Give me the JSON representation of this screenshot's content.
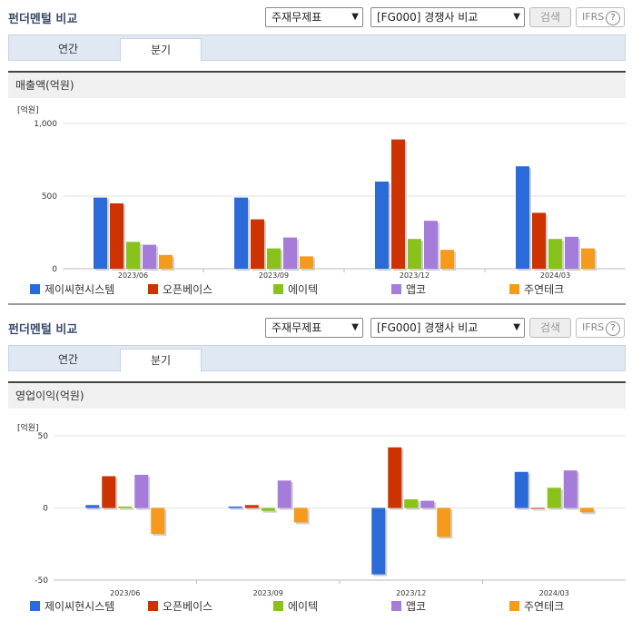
{
  "colors": [
    "#2a6ad9",
    "#cc3300",
    "#88c21b",
    "#a57cd9",
    "#f59a1c"
  ],
  "panels": [
    {
      "title": "펀더멘털 비교",
      "select1": "주재무제표",
      "select2": "[FG000] 경쟁사 비교",
      "search_label": "검색",
      "ifrs_label": "IFRS",
      "help_icon": "?",
      "tabs": [
        "연간",
        "분기"
      ],
      "active_tab": 1,
      "section_label": "매출액(억원)"
    },
    {
      "title": "펀더멘털 비교",
      "select1": "주재무제표",
      "select2": "[FG000] 경쟁사 비교",
      "search_label": "검색",
      "ifrs_label": "IFRS",
      "help_icon": "?",
      "tabs": [
        "연간",
        "분기"
      ],
      "active_tab": 1,
      "section_label": "영업이익(억원)"
    }
  ],
  "chart_data": [
    {
      "type": "bar",
      "unit_label": "[억원]",
      "categories": [
        "2023/06",
        "2023/09",
        "2023/12",
        "2024/03"
      ],
      "ylim": [
        0,
        1000
      ],
      "yticks": [
        0,
        500,
        1000
      ],
      "ytick_labels": [
        "0",
        "500",
        "1,000"
      ],
      "grid": true,
      "legend": "bottom",
      "series": [
        {
          "name": "제이씨현시스템",
          "values": [
            490,
            490,
            600,
            705
          ]
        },
        {
          "name": "오픈베이스",
          "values": [
            450,
            340,
            890,
            385
          ]
        },
        {
          "name": "에이텍",
          "values": [
            185,
            140,
            205,
            205
          ]
        },
        {
          "name": "앱코",
          "values": [
            165,
            215,
            330,
            220
          ]
        },
        {
          "name": "주연테크",
          "values": [
            95,
            85,
            130,
            140
          ]
        }
      ]
    },
    {
      "type": "bar",
      "unit_label": "[억원]",
      "categories": [
        "2023/06",
        "2023/09",
        "2023/12",
        "2024/03"
      ],
      "ylim": [
        -50,
        50
      ],
      "yticks": [
        -50,
        0,
        50
      ],
      "ytick_labels": [
        "-50",
        "0",
        "50"
      ],
      "grid": true,
      "legend": "bottom",
      "series": [
        {
          "name": "제이씨현시스템",
          "values": [
            2,
            1,
            -46,
            25
          ]
        },
        {
          "name": "오픈베이스",
          "values": [
            22,
            2,
            42,
            0
          ]
        },
        {
          "name": "에이텍",
          "values": [
            1,
            -2,
            6,
            14
          ]
        },
        {
          "name": "앱코",
          "values": [
            23,
            19,
            5,
            26
          ]
        },
        {
          "name": "주연테크",
          "values": [
            -18,
            -10,
            -20,
            -3
          ]
        }
      ]
    }
  ]
}
